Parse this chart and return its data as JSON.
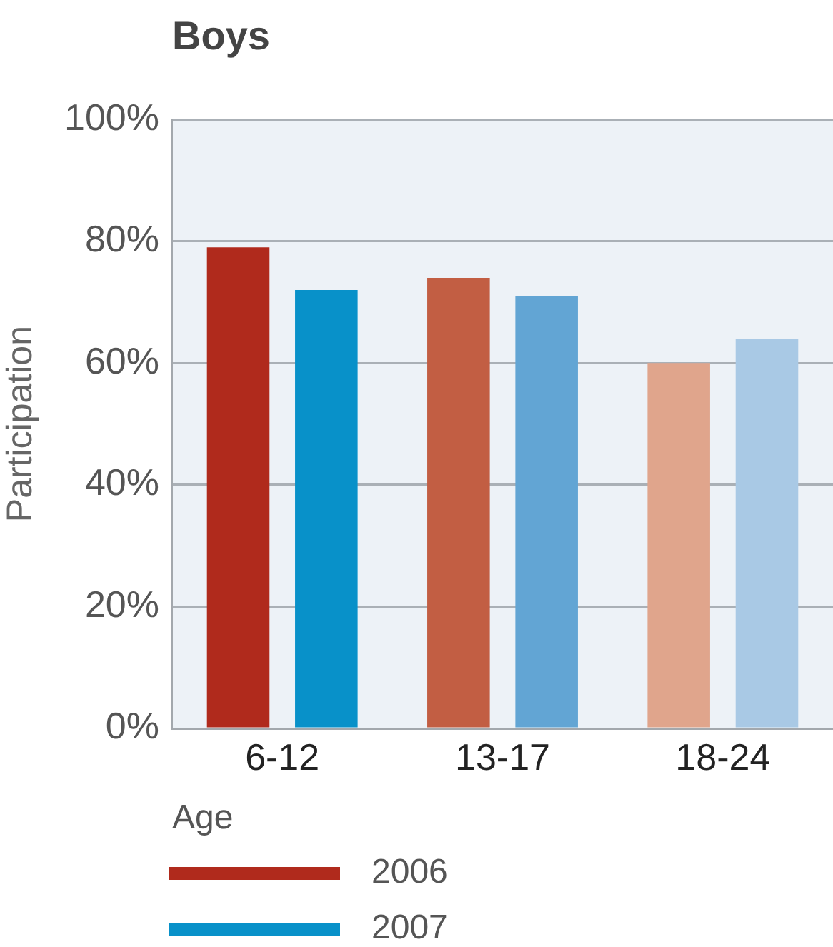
{
  "chart_data": {
    "type": "bar",
    "title": "Boys",
    "xlabel": "Age",
    "ylabel": "Participation",
    "categories": [
      "6-12",
      "13-17",
      "18-24"
    ],
    "series": [
      {
        "name": "2006",
        "color": "#b02a1c",
        "colors": [
          "#b02a1c",
          "#c25e43",
          "#e0a58c"
        ],
        "values": [
          79,
          74,
          60
        ]
      },
      {
        "name": "2007",
        "color": "#0891c9",
        "colors": [
          "#0891c9",
          "#62a5d4",
          "#a9c9e5"
        ],
        "values": [
          72,
          71,
          64
        ]
      }
    ],
    "ylim": [
      0,
      100
    ],
    "yticks": [
      {
        "value": 0,
        "label": "0%"
      },
      {
        "value": 20,
        "label": "20%"
      },
      {
        "value": 40,
        "label": "40%"
      },
      {
        "value": 60,
        "label": "60%"
      },
      {
        "value": 80,
        "label": "80%"
      },
      {
        "value": 100,
        "label": "100%"
      }
    ],
    "grid": "y",
    "legend": "bottom left"
  }
}
